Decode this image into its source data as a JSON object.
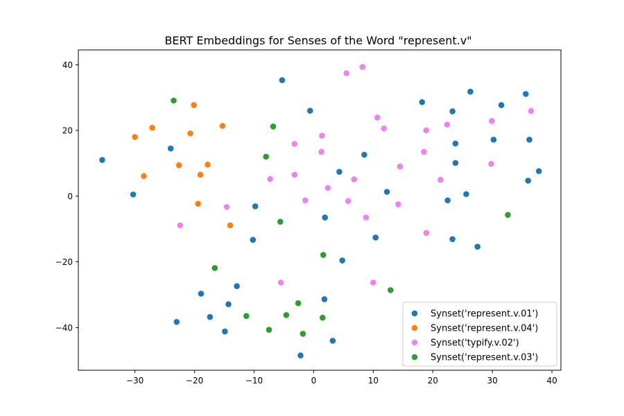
{
  "chart_data": {
    "type": "scatter",
    "title": "BERT Embeddings for Senses of the Word \"represent.v\"",
    "xlabel": "",
    "ylabel": "",
    "xlim": [
      -39.5,
      41.5
    ],
    "ylim": [
      -53,
      44.5
    ],
    "xticks": [
      -30,
      -20,
      -10,
      0,
      10,
      20,
      30,
      40
    ],
    "yticks": [
      -40,
      -20,
      0,
      20,
      40
    ],
    "xtick_labels": [
      "−30",
      "−20",
      "−10",
      "0",
      "10",
      "20",
      "30",
      "40"
    ],
    "ytick_labels": [
      "−40",
      "−20",
      "0",
      "20",
      "40"
    ],
    "grid": false,
    "legend_position": "lower-right",
    "series": [
      {
        "name": "Synset('represent.v.01')",
        "color": "#1f77b4",
        "points": [
          [
            -35.5,
            11
          ],
          [
            -30.3,
            0.5
          ],
          [
            -24,
            14.5
          ],
          [
            -5.3,
            35.3
          ],
          [
            -0.6,
            26
          ],
          [
            18.2,
            28.6
          ],
          [
            26.3,
            31.8
          ],
          [
            35.6,
            31.1
          ],
          [
            23.3,
            25.8
          ],
          [
            31.5,
            27.7
          ],
          [
            23.8,
            16
          ],
          [
            30.2,
            17.2
          ],
          [
            36.2,
            17.2
          ],
          [
            8.5,
            12.6
          ],
          [
            4.3,
            7.4
          ],
          [
            23.8,
            10.1
          ],
          [
            37.8,
            7.6
          ],
          [
            36,
            4.7
          ],
          [
            12.3,
            1.3
          ],
          [
            25.6,
            0.6
          ],
          [
            22.5,
            -1.3
          ],
          [
            -9.8,
            -3.1
          ],
          [
            1.9,
            -6.5
          ],
          [
            -10.2,
            -13.3
          ],
          [
            10.4,
            -12.6
          ],
          [
            23.3,
            -13.1
          ],
          [
            27.5,
            -15.4
          ],
          [
            4.8,
            -19.6
          ],
          [
            -12.9,
            -27.4
          ],
          [
            -18.9,
            -29.7
          ],
          [
            -14.3,
            -32.9
          ],
          [
            1.8,
            -31.4
          ],
          [
            -17.4,
            -36.8
          ],
          [
            -23,
            -38.3
          ],
          [
            -14.9,
            -41.2
          ],
          [
            3.2,
            -44
          ],
          [
            -2.2,
            -48.5
          ]
        ]
      },
      {
        "name": "Synset('represent.v.04')",
        "color": "#ff7f0e",
        "points": [
          [
            -20.1,
            27.7
          ],
          [
            -30,
            18
          ],
          [
            -27.1,
            20.8
          ],
          [
            -20.7,
            19.1
          ],
          [
            -15.3,
            21.4
          ],
          [
            -22.6,
            9.4
          ],
          [
            -17.8,
            9.6
          ],
          [
            -28.5,
            6.1
          ],
          [
            -19,
            6.5
          ],
          [
            -19.4,
            -2.3
          ],
          [
            -14,
            -8.9
          ]
        ]
      },
      {
        "name": "Synset('typify.v.02')",
        "color": "#ee82ee",
        "points": [
          [
            5.5,
            37.4
          ],
          [
            8.2,
            39.3
          ],
          [
            10.7,
            23.9
          ],
          [
            11.8,
            20.6
          ],
          [
            18.9,
            20
          ],
          [
            22.4,
            21.8
          ],
          [
            29.9,
            22.9
          ],
          [
            36.5,
            25.9
          ],
          [
            -3.2,
            15.9
          ],
          [
            1.4,
            18.4
          ],
          [
            1.3,
            13.5
          ],
          [
            18.5,
            13.5
          ],
          [
            14.5,
            9
          ],
          [
            29.8,
            9.8
          ],
          [
            -3.2,
            6.5
          ],
          [
            -7.3,
            5.2
          ],
          [
            6.8,
            5.1
          ],
          [
            21.3,
            5
          ],
          [
            2.4,
            2.5
          ],
          [
            -1.4,
            -1.3
          ],
          [
            5.8,
            -1.5
          ],
          [
            14.2,
            -2.5
          ],
          [
            -14.6,
            -3.3
          ],
          [
            8.8,
            -6.5
          ],
          [
            -22.4,
            -8.9
          ],
          [
            18.9,
            -11.2
          ],
          [
            -5.5,
            -26.3
          ],
          [
            10,
            -26.3
          ]
        ]
      },
      {
        "name": "Synset('represent.v.03')",
        "color": "#2ca02c",
        "points": [
          [
            -23.5,
            29.1
          ],
          [
            -6.8,
            21.2
          ],
          [
            -8,
            12
          ],
          [
            -5.6,
            -7.8
          ],
          [
            32.6,
            -5.7
          ],
          [
            1.6,
            -17.9
          ],
          [
            -16.6,
            -21.9
          ],
          [
            12.9,
            -28.6
          ],
          [
            -2.6,
            -32.6
          ],
          [
            -11.3,
            -36.5
          ],
          [
            -4.6,
            -36.2
          ],
          [
            1.5,
            -37
          ],
          [
            -7.5,
            -40.7
          ],
          [
            -1.8,
            -41.9
          ]
        ]
      }
    ]
  }
}
